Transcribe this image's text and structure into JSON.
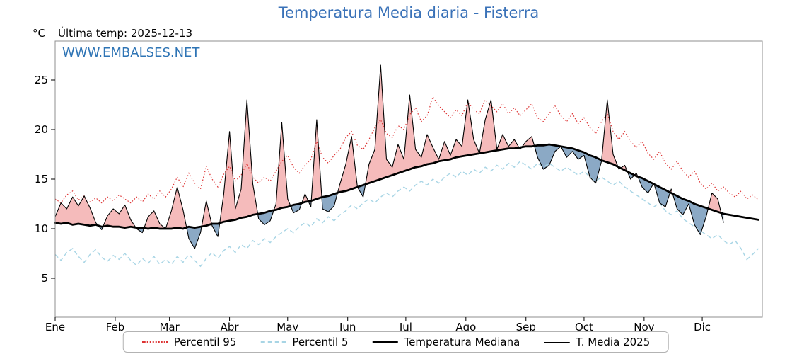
{
  "title": "Temperatura Media diaria - Fisterra",
  "y_unit": "°C",
  "last_temp_label": "Última temp: 2025-12-13",
  "watermark": "WWW.EMBALSES.NET",
  "colors": {
    "title": "#3a72b8",
    "watermark": "#2e74b5",
    "percentil95": "#dd3333",
    "percentil5": "#a8d5e5",
    "median": "#000000",
    "t2025": "#000000"
  },
  "legend": {
    "position": "bottom"
  },
  "chart_data": {
    "type": "line",
    "title": "Temperatura Media diaria - Fisterra",
    "xlabel": "",
    "ylabel": "°C",
    "x_tick_labels": [
      "Ene",
      "Feb",
      "Mar",
      "Abr",
      "May",
      "Jun",
      "Jul",
      "Ago",
      "Sep",
      "Oct",
      "Nov",
      "Dic"
    ],
    "month_start_days": [
      0,
      31,
      59,
      90,
      120,
      151,
      181,
      212,
      243,
      273,
      304,
      334
    ],
    "yticks": [
      5,
      10,
      15,
      20,
      25
    ],
    "ylim": [
      1,
      29
    ],
    "x_range_days": [
      0,
      365
    ],
    "x_step_days": 3,
    "grid": false,
    "fills": {
      "above_color": "rgba(232,105,105,0.45)",
      "below_color": "rgba(100,140,178,0.75)",
      "meaning": "pink where T. Media 2025 is above Temperatura Mediana, blue where below"
    },
    "series": [
      {
        "key": "p95",
        "name": "Percentil 95",
        "style": "dotted",
        "color": "#dd3333",
        "values": [
          13.0,
          12.6,
          13.4,
          13.8,
          12.9,
          13.3,
          12.7,
          13.1,
          12.6,
          13.2,
          12.8,
          13.4,
          13.0,
          12.6,
          13.2,
          12.7,
          13.5,
          13.0,
          13.8,
          13.2,
          14.0,
          15.2,
          14.2,
          15.6,
          14.6,
          14.0,
          16.3,
          15.0,
          14.2,
          15.5,
          16.3,
          14.8,
          15.4,
          16.6,
          15.2,
          14.6,
          15.2,
          14.8,
          15.8,
          16.8,
          17.4,
          16.2,
          15.6,
          16.4,
          17.0,
          18.8,
          17.2,
          16.6,
          17.4,
          18.0,
          19.2,
          19.8,
          18.4,
          18.0,
          19.0,
          20.2,
          21.0,
          19.6,
          19.2,
          20.4,
          20.0,
          21.5,
          22.2,
          20.8,
          21.4,
          23.3,
          22.4,
          21.8,
          21.2,
          22.0,
          21.4,
          22.8,
          22.0,
          21.6,
          23.0,
          22.4,
          21.8,
          22.6,
          21.6,
          22.2,
          21.4,
          22.0,
          22.6,
          21.2,
          20.8,
          21.6,
          22.4,
          21.4,
          20.8,
          21.6,
          20.6,
          21.2,
          20.2,
          19.6,
          20.8,
          21.6,
          19.8,
          19.0,
          19.8,
          18.8,
          18.2,
          18.8,
          17.6,
          17.0,
          17.8,
          16.6,
          16.0,
          16.8,
          15.8,
          15.2,
          15.8,
          14.6,
          14.0,
          14.6,
          13.8,
          14.2,
          13.6,
          13.2,
          13.8,
          13.0,
          13.4,
          12.9
        ]
      },
      {
        "key": "p5",
        "name": "Percentil 5",
        "style": "dashed",
        "color": "#a8d5e5",
        "values": [
          7.4,
          6.8,
          7.6,
          8.0,
          7.2,
          6.6,
          7.4,
          7.9,
          7.1,
          6.7,
          7.3,
          6.9,
          7.5,
          6.8,
          6.3,
          7.0,
          6.5,
          7.2,
          6.4,
          6.9,
          6.4,
          7.2,
          6.6,
          7.4,
          6.8,
          6.2,
          7.0,
          7.6,
          7.0,
          7.8,
          8.2,
          7.6,
          8.4,
          8.0,
          8.8,
          8.4,
          9.0,
          8.6,
          9.2,
          9.6,
          10.0,
          9.6,
          10.2,
          10.6,
          10.2,
          11.0,
          10.6,
          11.2,
          10.8,
          11.4,
          11.8,
          12.4,
          12.0,
          12.6,
          13.0,
          12.6,
          13.2,
          13.6,
          13.2,
          13.8,
          14.2,
          13.8,
          14.4,
          14.8,
          14.4,
          15.0,
          14.6,
          15.2,
          15.6,
          15.2,
          15.8,
          15.4,
          16.0,
          15.6,
          16.2,
          15.8,
          16.4,
          16.0,
          16.6,
          16.2,
          16.8,
          16.4,
          16.0,
          16.6,
          16.2,
          16.6,
          16.2,
          15.8,
          16.2,
          15.8,
          15.4,
          15.8,
          15.2,
          14.8,
          15.2,
          14.8,
          14.4,
          14.8,
          14.2,
          13.8,
          13.4,
          13.0,
          12.6,
          12.2,
          12.6,
          11.8,
          11.4,
          11.8,
          11.0,
          10.6,
          10.2,
          9.8,
          9.4,
          9.0,
          9.4,
          8.8,
          8.4,
          8.8,
          8.0,
          6.9,
          7.4,
          8.0
        ]
      },
      {
        "key": "median",
        "name": "Temperatura Mediana",
        "style": "solid-thick",
        "color": "#000000",
        "values": [
          10.6,
          10.5,
          10.6,
          10.4,
          10.5,
          10.4,
          10.3,
          10.4,
          10.2,
          10.3,
          10.2,
          10.2,
          10.1,
          10.2,
          10.1,
          10.1,
          10.0,
          10.1,
          10.0,
          10.0,
          10.0,
          10.1,
          10.0,
          10.2,
          10.1,
          10.2,
          10.3,
          10.5,
          10.5,
          10.7,
          10.8,
          10.9,
          11.1,
          11.2,
          11.4,
          11.5,
          11.6,
          11.8,
          11.9,
          12.1,
          12.2,
          12.4,
          12.5,
          12.7,
          12.8,
          13.0,
          13.2,
          13.3,
          13.5,
          13.7,
          13.8,
          14.0,
          14.2,
          14.4,
          14.6,
          14.8,
          15.0,
          15.2,
          15.4,
          15.6,
          15.8,
          16.0,
          16.2,
          16.3,
          16.5,
          16.6,
          16.8,
          16.9,
          17.0,
          17.2,
          17.3,
          17.4,
          17.5,
          17.6,
          17.7,
          17.8,
          17.9,
          18.0,
          18.1,
          18.1,
          18.2,
          18.3,
          18.3,
          18.4,
          18.4,
          18.5,
          18.4,
          18.3,
          18.2,
          18.1,
          17.9,
          17.7,
          17.4,
          17.2,
          16.9,
          16.7,
          16.5,
          16.2,
          15.9,
          15.6,
          15.3,
          15.1,
          14.8,
          14.5,
          14.2,
          13.9,
          13.6,
          13.3,
          13.0,
          12.8,
          12.5,
          12.3,
          12.1,
          11.9,
          11.7,
          11.5,
          11.4,
          11.3,
          11.2,
          11.1,
          11.0,
          10.9
        ]
      },
      {
        "key": "t2025",
        "name": "T. Media 2025",
        "style": "solid-thin",
        "color": "#000000",
        "last_date": "2025-12-13",
        "values": [
          11.2,
          12.6,
          12.0,
          13.2,
          12.3,
          13.3,
          12.1,
          10.6,
          9.9,
          11.3,
          12.0,
          11.5,
          12.4,
          10.9,
          10.0,
          9.6,
          11.2,
          11.8,
          10.5,
          10.0,
          11.8,
          14.2,
          11.9,
          9.0,
          8.0,
          9.6,
          12.8,
          10.3,
          9.2,
          13.5,
          19.8,
          12.0,
          14.0,
          23.0,
          14.5,
          11.0,
          10.4,
          10.8,
          12.5,
          20.7,
          13.0,
          11.6,
          11.9,
          13.5,
          12.2,
          21.0,
          12.0,
          11.7,
          12.3,
          14.5,
          16.5,
          19.3,
          14.2,
          13.2,
          16.5,
          18.0,
          26.5,
          17.0,
          16.2,
          18.5,
          17.0,
          23.5,
          18.0,
          17.2,
          19.5,
          18.2,
          17.0,
          18.8,
          17.4,
          19.0,
          18.3,
          23.0,
          19.0,
          17.6,
          21.0,
          23.0,
          18.0,
          19.5,
          18.3,
          19.0,
          18.0,
          18.8,
          19.3,
          17.2,
          16.0,
          16.4,
          17.8,
          18.3,
          17.2,
          17.8,
          17.0,
          17.4,
          15.2,
          14.6,
          16.8,
          23.0,
          17.5,
          16.0,
          16.4,
          15.0,
          15.6,
          14.2,
          13.6,
          14.6,
          12.6,
          12.2,
          14.0,
          12.0,
          11.4,
          12.5,
          10.4,
          9.4,
          11.2,
          13.6,
          13.0,
          10.6
        ]
      }
    ]
  }
}
